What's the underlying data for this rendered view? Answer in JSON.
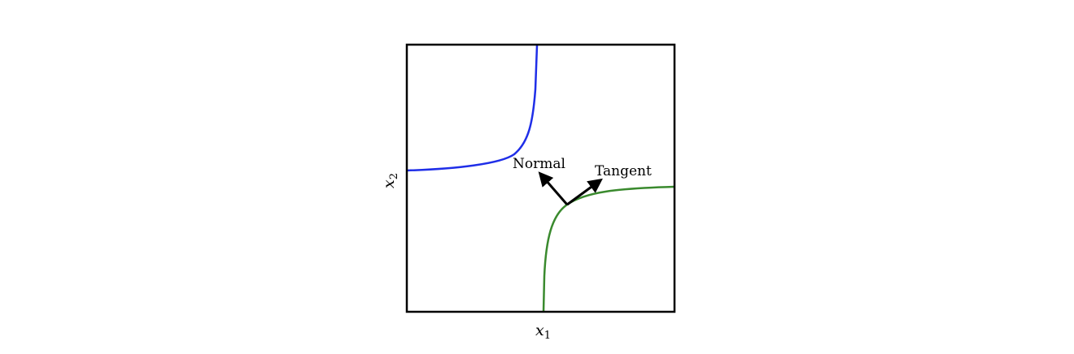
{
  "figure": {
    "xlabel": {
      "var": "x",
      "sub": "1"
    },
    "ylabel": {
      "var": "x",
      "sub": "2"
    },
    "annotations": {
      "normal": "Normal",
      "tangent": "Tangent"
    }
  },
  "colors": {
    "frame": "#000000",
    "upper_curve": "#1f2ee8",
    "lower_curve": "#3a8a2e",
    "arrow": "#000000"
  }
}
